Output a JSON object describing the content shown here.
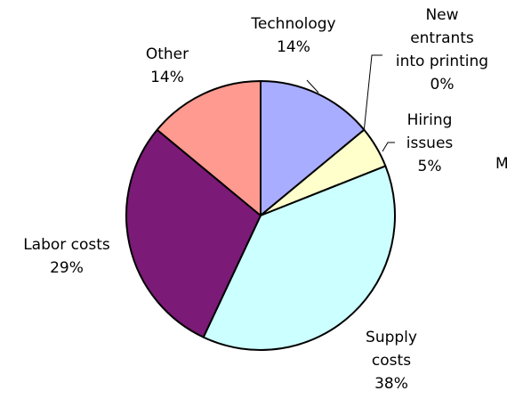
{
  "chart_data": {
    "type": "pie",
    "categories": [
      "Technology",
      "New entrants into printing",
      "Hiring issues",
      "Supply costs",
      "Labor costs",
      "Other"
    ],
    "values": [
      14,
      0,
      5,
      38,
      29,
      14
    ],
    "value_labels": [
      "14%",
      "0%",
      "5%",
      "38%",
      "29%",
      "14%"
    ],
    "colors": [
      "#a9adff",
      "#7b1a77",
      "#ffffcc",
      "#ccffff",
      "#7b1a77",
      "#ff9a90"
    ],
    "annotations": [
      "M"
    ]
  }
}
